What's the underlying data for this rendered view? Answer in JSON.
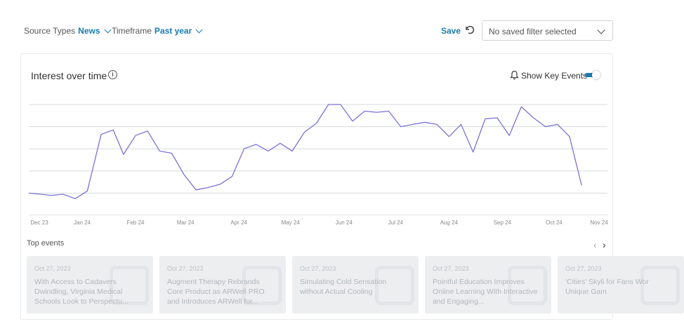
{
  "filters": {
    "source_label": "Source Types",
    "source_value": "News",
    "timeframe_label": "Timeframe",
    "timeframe_value": "Past year"
  },
  "toolbar": {
    "save_label": "Save",
    "saved_filter_placeholder": "No saved filter selected"
  },
  "card": {
    "title": "Interest over time",
    "key_events_label": "Show Key Events",
    "key_events_enabled": true,
    "accent_color": "#1a7bb0",
    "line_color": "#7b72d6"
  },
  "chart_data": {
    "type": "line",
    "title": "Interest over time",
    "xlabel": "",
    "ylabel": "",
    "grid": true,
    "x_ticks": [
      "Dec 23",
      "Jan 24",
      "Feb 24",
      "Mar 24",
      "Apr 24",
      "May 24",
      "Jun 24",
      "Jul 24",
      "Aug 24",
      "Sep 24",
      "Oct 24",
      "Nov 24"
    ],
    "x_start": "2023-12-01",
    "x_end": "2024-11-01",
    "ylim": [
      0,
      100
    ],
    "series": [
      {
        "values": [
          [
            "2023-12-01",
            20
          ],
          [
            "2023-12-08",
            19
          ],
          [
            "2023-12-14",
            18
          ],
          [
            "2023-12-21",
            19
          ],
          [
            "2023-12-28",
            15
          ],
          [
            "2024-01-04",
            22
          ],
          [
            "2024-01-12",
            73
          ],
          [
            "2024-01-19",
            77
          ],
          [
            "2024-01-25",
            55
          ],
          [
            "2024-02-01",
            72
          ],
          [
            "2024-02-08",
            76
          ],
          [
            "2024-02-15",
            58
          ],
          [
            "2024-02-22",
            56
          ],
          [
            "2024-02-29",
            37
          ],
          [
            "2024-03-07",
            23
          ],
          [
            "2024-03-14",
            25
          ],
          [
            "2024-03-21",
            28
          ],
          [
            "2024-03-28",
            35
          ],
          [
            "2024-04-04",
            60
          ],
          [
            "2024-04-11",
            64
          ],
          [
            "2024-04-18",
            58
          ],
          [
            "2024-04-25",
            65
          ],
          [
            "2024-05-02",
            58
          ],
          [
            "2024-05-09",
            75
          ],
          [
            "2024-05-16",
            83
          ],
          [
            "2024-05-23",
            100
          ],
          [
            "2024-05-30",
            100
          ],
          [
            "2024-06-06",
            85
          ],
          [
            "2024-06-13",
            94
          ],
          [
            "2024-06-20",
            93
          ],
          [
            "2024-06-27",
            94
          ],
          [
            "2024-07-04",
            80
          ],
          [
            "2024-07-11",
            82
          ],
          [
            "2024-07-18",
            84
          ],
          [
            "2024-07-25",
            82
          ],
          [
            "2024-08-01",
            71
          ],
          [
            "2024-08-08",
            82
          ],
          [
            "2024-08-15",
            57
          ],
          [
            "2024-08-22",
            87
          ],
          [
            "2024-08-29",
            88
          ],
          [
            "2024-09-05",
            72
          ],
          [
            "2024-09-12",
            98
          ],
          [
            "2024-09-19",
            88
          ],
          [
            "2024-09-26",
            80
          ],
          [
            "2024-10-03",
            82
          ],
          [
            "2024-10-10",
            71
          ],
          [
            "2024-10-17",
            27
          ]
        ]
      }
    ]
  },
  "top_events": {
    "title": "Top events",
    "items": [
      {
        "date": "Oct 27, 2023",
        "title": "With Access to Cadavers Dwindling, Virginia Medical Schools Look to Perspectu..."
      },
      {
        "date": "Oct 27, 2023",
        "title": "Augment Therapy Rebrands Core Product as ARWell PRO and Introduces ARWell for..."
      },
      {
        "date": "Oct 27, 2023",
        "title": "Simulating Cold Sensation without Actual Cooling"
      },
      {
        "date": "Oct 27, 2023",
        "title": "Pointful Education Improves Online Learning With Interactive and Engaging..."
      },
      {
        "date": "Oct 27, 2023",
        "title": "'Cities' Skyli for Fans Wor Unique Gam"
      }
    ]
  }
}
